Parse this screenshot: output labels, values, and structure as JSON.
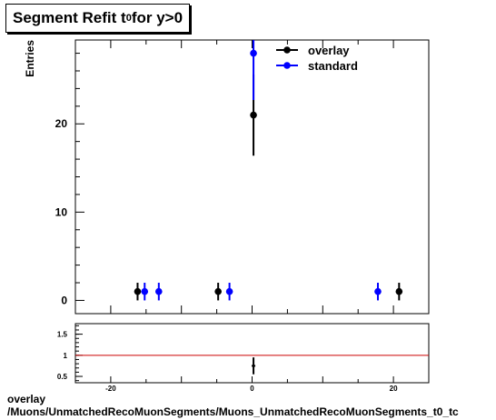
{
  "title": {
    "prefix": "Segment Refit t",
    "sub": "0",
    "suffix": " for y>0"
  },
  "footer": {
    "line1": "overlay",
    "line2": "/Muons/UnmatchedRecoMuonSegments/Muons_UnmatchedRecoMuonSegments_t0_tc"
  },
  "chart_data": [
    {
      "type": "scatter",
      "ylabel": "Entries",
      "xlim": [
        -25,
        25
      ],
      "ylim": [
        -1.5,
        29.5
      ],
      "yticks": [
        0,
        10,
        20
      ],
      "legend_placement": "top-right",
      "series": [
        {
          "name": "overlay",
          "color": "#000000",
          "points": [
            {
              "x": -16.2,
              "y": 1,
              "err": 1
            },
            {
              "x": -4.8,
              "y": 1,
              "err": 1
            },
            {
              "x": 0.2,
              "y": 21,
              "err": 4.6
            },
            {
              "x": 20.8,
              "y": 1,
              "err": 1
            }
          ]
        },
        {
          "name": "standard",
          "color": "#0000ff",
          "points": [
            {
              "x": -15.2,
              "y": 1,
              "err": 1
            },
            {
              "x": -13.2,
              "y": 1,
              "err": 1
            },
            {
              "x": -3.2,
              "y": 1,
              "err": 1
            },
            {
              "x": 0.2,
              "y": 28,
              "err": 5.3
            },
            {
              "x": 17.8,
              "y": 1,
              "err": 1
            }
          ]
        }
      ]
    },
    {
      "type": "scatter",
      "xlim": [
        -25,
        25
      ],
      "ylim": [
        0.35,
        1.75
      ],
      "xticks": [
        -20,
        0,
        20
      ],
      "yticks": [
        0.5,
        1,
        1.5
      ],
      "reference_line": {
        "y": 1,
        "color": "#cc0000"
      },
      "series": [
        {
          "name": "ratio",
          "color": "#000000",
          "points": [
            {
              "x": 0.2,
              "y": 0.75,
              "err": 0.2
            }
          ]
        }
      ]
    }
  ]
}
